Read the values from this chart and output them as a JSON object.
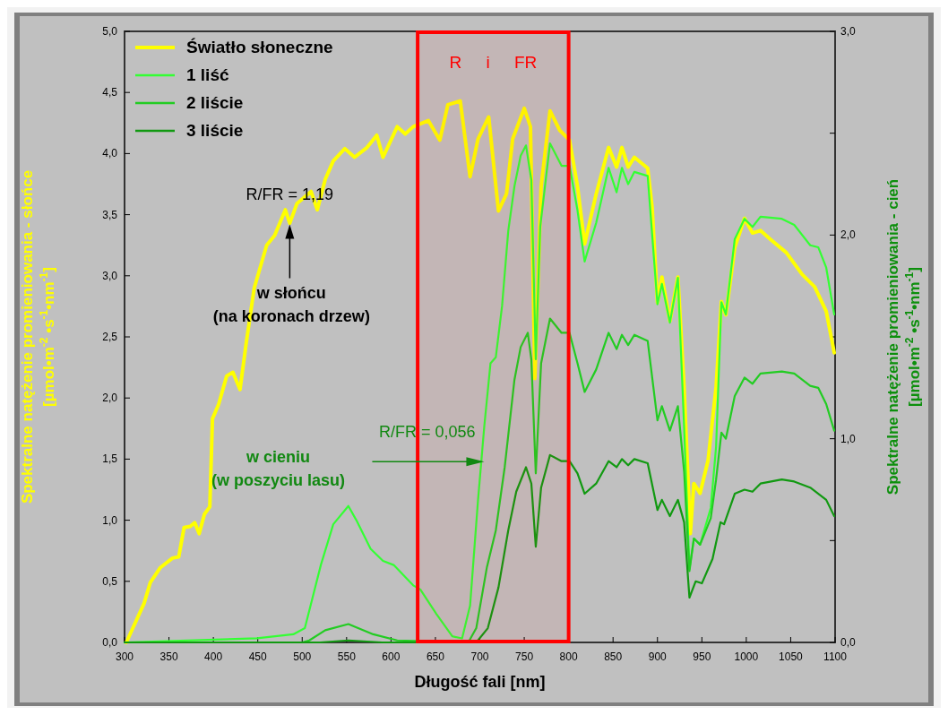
{
  "chart_data": {
    "type": "line",
    "xlabel": "Długość fali [nm]",
    "ylabel": "Spektralne natężenie promieniowania - słońce\n[µmol•m$^{-2}$ •s$^{-1}$•nm$^{-1}$]",
    "y2label": "Spektralne natężenie promieniowania - cień\n[µmol•m$^{-2}$ •s$^{-1}$•nm$^{-1}$]",
    "xlim": [
      300,
      1100
    ],
    "xticks": [
      300,
      350,
      400,
      450,
      500,
      550,
      600,
      650,
      700,
      750,
      800,
      850,
      900,
      950,
      1000,
      1050,
      1100
    ],
    "ylim": [
      0,
      5
    ],
    "yticks": [
      {
        "value": 0,
        "label": "0,0"
      },
      {
        "value": 0.5,
        "label": "0,5"
      },
      {
        "value": 1,
        "label": "1,0"
      },
      {
        "value": 1.5,
        "label": "1,5"
      },
      {
        "value": 2,
        "label": "2,0"
      },
      {
        "value": 2.5,
        "label": "2,5"
      },
      {
        "value": 3,
        "label": "3,0"
      },
      {
        "value": 3.5,
        "label": "3,5"
      },
      {
        "value": 4,
        "label": "4,0"
      },
      {
        "value": 4.5,
        "label": "4,5"
      },
      {
        "value": 5,
        "label": "5,0"
      }
    ],
    "y2lim": [
      0,
      3
    ],
    "y2ticks": [
      {
        "value": 0,
        "label": "0,0"
      },
      {
        "value": 0.5,
        "label": null
      },
      {
        "value": 1,
        "label": "1,0"
      },
      {
        "value": 1.5,
        "label": null
      },
      {
        "value": 2,
        "label": "2,0"
      },
      {
        "value": 2.5,
        "label": null
      },
      {
        "value": 3,
        "label": "3,0"
      }
    ],
    "legend": "top left",
    "grid": false,
    "line_style": "solid",
    "marker": "none",
    "bands": [
      {
        "axis": "x",
        "from": 630,
        "to": 800,
        "label": "R i FR",
        "color": "#ff0000"
      }
    ],
    "annotations": [
      "R/FR = 1,19",
      {
        "text": "w słońcu\n(na koronach drzew)",
        "x": 486,
        "y": 3.42
      },
      {
        "text": "R/FR = 0,056",
        "x": 705,
        "y": 1.48
      },
      "w cieniu\n(w poszyciu lasu)"
    ],
    "series": [
      {
        "name": "Światło słoneczne",
        "color": "#ffff00",
        "x": [
          302,
          322,
          329,
          340,
          354,
          361,
          367,
          374,
          379,
          384,
          390,
          396,
          399,
          406,
          415,
          422,
          430,
          437,
          446,
          460,
          469,
          481,
          486,
          494,
          510,
          517,
          526,
          535,
          548,
          559,
          573,
          584,
          591,
          607,
          616,
          625,
          642,
          655,
          664,
          678,
          689,
          698,
          710,
          721,
          730,
          737,
          750,
          757,
          762,
          769,
          779,
          790,
          801,
          810,
          818,
          831,
          845,
          854,
          860,
          867,
          874,
          889,
          894,
          900,
          905,
          914,
          923,
          930,
          937,
          941,
          948,
          957,
          966,
          972,
          977,
          987,
          998,
          1007,
          1016,
          1027,
          1045,
          1063,
          1077,
          1090,
          1099
        ],
        "values": [
          0,
          0.32,
          0.49,
          0.61,
          0.69,
          0.7,
          0.94,
          0.95,
          0.98,
          0.89,
          1.05,
          1.11,
          1.83,
          1.95,
          2.18,
          2.21,
          2.07,
          2.45,
          2.9,
          3.25,
          3.33,
          3.54,
          3.43,
          3.59,
          3.69,
          3.54,
          3.79,
          3.94,
          4.04,
          3.97,
          4.05,
          4.15,
          3.97,
          4.22,
          4.16,
          4.22,
          4.27,
          4.11,
          4.4,
          4.43,
          3.81,
          4.12,
          4.3,
          3.53,
          3.67,
          4.12,
          4.37,
          4.22,
          2.16,
          3.73,
          4.35,
          4.19,
          4.11,
          3.73,
          3.26,
          3.67,
          4.05,
          3.89,
          4.05,
          3.89,
          3.97,
          3.88,
          3.56,
          2.78,
          2.99,
          2.63,
          2.99,
          2.09,
          0.89,
          1.3,
          1.22,
          1.49,
          2.09,
          2.79,
          2.68,
          3.23,
          3.47,
          3.35,
          3.37,
          3.3,
          3.19,
          3.01,
          2.91,
          2.71,
          2.37
        ]
      },
      {
        "name": "1 liść",
        "color": "#33ff33",
        "axis": "y2",
        "x": [
          300,
          449,
          490,
          503,
          521,
          535,
          552,
          561,
          577,
          591,
          603,
          625,
          633,
          651,
          669,
          680,
          689,
          698,
          705,
          712,
          718,
          725,
          732,
          739,
          746,
          752,
          758,
          763,
          768,
          779,
          792,
          801,
          810,
          818,
          831,
          845,
          854,
          860,
          867,
          874,
          889,
          900,
          905,
          914,
          923,
          930,
          936,
          941,
          948,
          960,
          966,
          972,
          977,
          987,
          998,
          1007,
          1016,
          1040,
          1054,
          1072,
          1081,
          1090,
          1099
        ],
        "values": [
          0,
          0.02,
          0.04,
          0.07,
          0.38,
          0.58,
          0.67,
          0.6,
          0.46,
          0.4,
          0.38,
          0.28,
          0.26,
          0.14,
          0.03,
          0.02,
          0.18,
          0.7,
          1.06,
          1.37,
          1.4,
          1.65,
          2.02,
          2.24,
          2.39,
          2.44,
          2.27,
          1.39,
          2.04,
          2.45,
          2.34,
          2.34,
          2.12,
          1.87,
          2.06,
          2.33,
          2.21,
          2.33,
          2.25,
          2.31,
          2.29,
          1.66,
          1.76,
          1.57,
          1.79,
          1.06,
          0.36,
          0.51,
          0.48,
          0.66,
          0.96,
          1.67,
          1.61,
          1.98,
          2.08,
          2.04,
          2.09,
          2.08,
          2.05,
          1.95,
          1.94,
          1.84,
          1.61
        ]
      },
      {
        "name": "2 liście",
        "color": "#22cc22",
        "axis": "y2",
        "x": [
          300,
          500,
          508,
          526,
          552,
          580,
          607,
          687,
          696,
          708,
          718,
          728,
          739,
          746,
          754,
          758,
          763,
          769,
          779,
          792,
          801,
          810,
          818,
          831,
          845,
          854,
          860,
          867,
          874,
          889,
          900,
          905,
          914,
          923,
          930,
          936,
          941,
          948,
          960,
          966,
          972,
          977,
          987,
          998,
          1007,
          1016,
          1040,
          1054,
          1072,
          1081,
          1090,
          1099
        ],
        "values": [
          0,
          0,
          0.01,
          0.06,
          0.09,
          0.04,
          0.01,
          0,
          0.07,
          0.37,
          0.55,
          0.86,
          1.29,
          1.45,
          1.52,
          1.39,
          0.83,
          1.37,
          1.59,
          1.52,
          1.52,
          1.37,
          1.23,
          1.34,
          1.52,
          1.44,
          1.51,
          1.46,
          1.51,
          1.48,
          1.09,
          1.16,
          1.04,
          1.16,
          0.84,
          0.35,
          0.51,
          0.48,
          0.61,
          0.8,
          1.03,
          1,
          1.21,
          1.3,
          1.27,
          1.32,
          1.33,
          1.32,
          1.26,
          1.25,
          1.17,
          1.04
        ]
      },
      {
        "name": "3 liście",
        "color": "#119911",
        "axis": "y2",
        "x": [
          300,
          520,
          552,
          590,
          696,
          709,
          721,
          732,
          741,
          752,
          758,
          763,
          769,
          779,
          792,
          801,
          810,
          818,
          831,
          845,
          854,
          860,
          867,
          874,
          889,
          900,
          905,
          914,
          923,
          930,
          936,
          943,
          950,
          962,
          971,
          975,
          987,
          998,
          1007,
          1016,
          1040,
          1054,
          1072,
          1090,
          1099
        ],
        "values": [
          0,
          0,
          0.01,
          0,
          0,
          0.07,
          0.27,
          0.55,
          0.74,
          0.86,
          0.78,
          0.47,
          0.76,
          0.92,
          0.89,
          0.89,
          0.83,
          0.73,
          0.78,
          0.89,
          0.86,
          0.9,
          0.87,
          0.9,
          0.88,
          0.65,
          0.7,
          0.62,
          0.7,
          0.59,
          0.22,
          0.3,
          0.29,
          0.41,
          0.59,
          0.58,
          0.73,
          0.75,
          0.74,
          0.78,
          0.8,
          0.79,
          0.76,
          0.7,
          0.62
        ]
      }
    ]
  }
}
